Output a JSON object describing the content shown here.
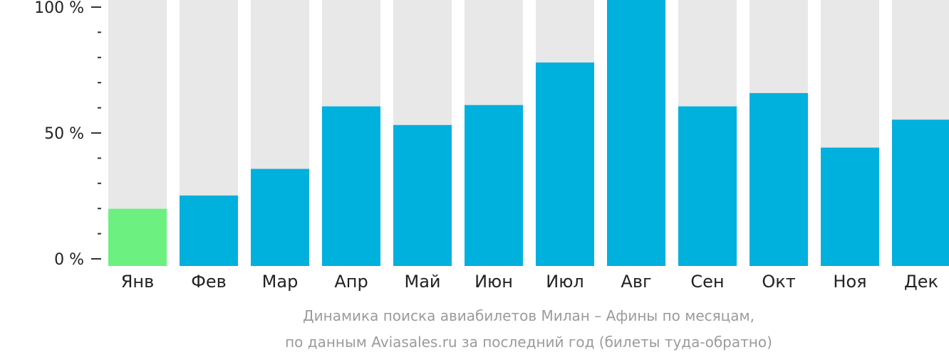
{
  "chart_data": {
    "type": "bar",
    "categories": [
      "Янв",
      "Фев",
      "Мар",
      "Апр",
      "Май",
      "Июн",
      "Июл",
      "Авг",
      "Сен",
      "Окт",
      "Ноя",
      "Дек"
    ],
    "values": [
      21.5,
      26.5,
      36.5,
      60,
      53,
      60.5,
      76.5,
      100,
      60,
      65,
      44.5,
      55
    ],
    "ylim": [
      0,
      100
    ],
    "yticks": [
      {
        "value": 0,
        "label": "0 %"
      },
      {
        "value": 50,
        "label": "50 %"
      },
      {
        "value": 100,
        "label": "100 %"
      }
    ],
    "minor_tick_step": 10,
    "caption_lines": [
      "Динамика поиска авиабилетов Милан – Афины по месяцам,",
      "по данным Aviasales.ru за последний год (билеты туда-обратно)"
    ],
    "highlight_index": 0,
    "colors": {
      "bar": "#00b0dd",
      "highlight": "#6cf080",
      "track": "#e8e8e8",
      "axis": "#333333"
    }
  }
}
